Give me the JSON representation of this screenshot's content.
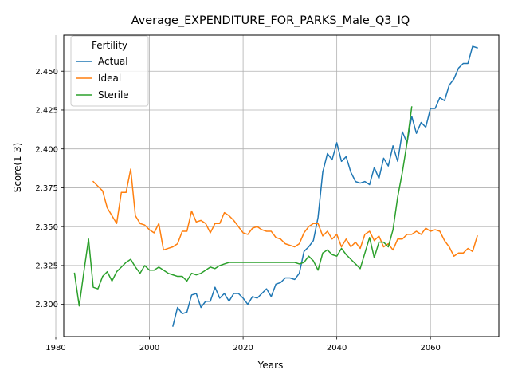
{
  "chart_data": {
    "type": "line",
    "title": "Average_EXPENDITURE_FOR_PARKS_Male_Q3_IQ",
    "xlabel": "Years",
    "ylabel": "Score(1-3)",
    "xlim": [
      1981.7,
      2074.6
    ],
    "ylim": [
      2.2793,
      2.4732
    ],
    "xticks": [
      1980,
      2000,
      2020,
      2040,
      2060
    ],
    "yticks": [
      2.3,
      2.325,
      2.35,
      2.375,
      2.4,
      2.425,
      2.45
    ],
    "ytick_labels": [
      "2.300",
      "2.325",
      "2.350",
      "2.375",
      "2.400",
      "2.425",
      "2.450"
    ],
    "grid": true,
    "legend": {
      "title": "Fertility",
      "placement": "top-left"
    },
    "series": [
      {
        "name": "Actual",
        "color": "#1f77b4",
        "points": [
          [
            2005,
            2.286
          ],
          [
            2006,
            2.298
          ],
          [
            2007,
            2.294
          ],
          [
            2008,
            2.295
          ],
          [
            2009,
            2.306
          ],
          [
            2010,
            2.307
          ],
          [
            2011,
            2.298
          ],
          [
            2012,
            2.302
          ],
          [
            2013,
            2.302
          ],
          [
            2014,
            2.311
          ],
          [
            2015,
            2.304
          ],
          [
            2016,
            2.307
          ],
          [
            2017,
            2.302
          ],
          [
            2018,
            2.307
          ],
          [
            2019,
            2.307
          ],
          [
            2020,
            2.304
          ],
          [
            2021,
            2.3
          ],
          [
            2022,
            2.305
          ],
          [
            2023,
            2.304
          ],
          [
            2024,
            2.307
          ],
          [
            2025,
            2.31
          ],
          [
            2026,
            2.305
          ],
          [
            2027,
            2.313
          ],
          [
            2028,
            2.314
          ],
          [
            2029,
            2.317
          ],
          [
            2030,
            2.317
          ],
          [
            2031,
            2.316
          ],
          [
            2032,
            2.32
          ],
          [
            2033,
            2.334
          ],
          [
            2034,
            2.337
          ],
          [
            2035,
            2.341
          ],
          [
            2036,
            2.356
          ],
          [
            2037,
            2.385
          ],
          [
            2038,
            2.397
          ],
          [
            2039,
            2.393
          ],
          [
            2040,
            2.404
          ],
          [
            2041,
            2.392
          ],
          [
            2042,
            2.395
          ],
          [
            2043,
            2.385
          ],
          [
            2044,
            2.379
          ],
          [
            2045,
            2.378
          ],
          [
            2046,
            2.379
          ],
          [
            2047,
            2.377
          ],
          [
            2048,
            2.388
          ],
          [
            2049,
            2.381
          ],
          [
            2050,
            2.394
          ],
          [
            2051,
            2.389
          ],
          [
            2052,
            2.402
          ],
          [
            2053,
            2.392
          ],
          [
            2054,
            2.411
          ],
          [
            2055,
            2.404
          ],
          [
            2056,
            2.421
          ],
          [
            2057,
            2.41
          ],
          [
            2058,
            2.417
          ],
          [
            2059,
            2.414
          ],
          [
            2060,
            2.426
          ],
          [
            2061,
            2.426
          ],
          [
            2062,
            2.433
          ],
          [
            2063,
            2.431
          ],
          [
            2064,
            2.441
          ],
          [
            2065,
            2.445
          ],
          [
            2066,
            2.452
          ],
          [
            2067,
            2.455
          ],
          [
            2068,
            2.455
          ],
          [
            2069,
            2.466
          ],
          [
            2070,
            2.465
          ]
        ]
      },
      {
        "name": "Ideal",
        "color": "#ff7f0e",
        "points": [
          [
            1988,
            2.379
          ],
          [
            1989,
            2.376
          ],
          [
            1990,
            2.373
          ],
          [
            1991,
            2.362
          ],
          [
            1992,
            2.357
          ],
          [
            1993,
            2.352
          ],
          [
            1994,
            2.372
          ],
          [
            1995,
            2.372
          ],
          [
            1996,
            2.387
          ],
          [
            1997,
            2.357
          ],
          [
            1998,
            2.352
          ],
          [
            1999,
            2.351
          ],
          [
            2000,
            2.348
          ],
          [
            2001,
            2.346
          ],
          [
            2002,
            2.352
          ],
          [
            2003,
            2.335
          ],
          [
            2004,
            2.336
          ],
          [
            2005,
            2.337
          ],
          [
            2006,
            2.339
          ],
          [
            2007,
            2.347
          ],
          [
            2008,
            2.347
          ],
          [
            2009,
            2.36
          ],
          [
            2010,
            2.353
          ],
          [
            2011,
            2.354
          ],
          [
            2012,
            2.352
          ],
          [
            2013,
            2.346
          ],
          [
            2014,
            2.352
          ],
          [
            2015,
            2.352
          ],
          [
            2016,
            2.359
          ],
          [
            2017,
            2.357
          ],
          [
            2018,
            2.354
          ],
          [
            2019,
            2.35
          ],
          [
            2020,
            2.346
          ],
          [
            2021,
            2.345
          ],
          [
            2022,
            2.349
          ],
          [
            2023,
            2.35
          ],
          [
            2024,
            2.348
          ],
          [
            2025,
            2.347
          ],
          [
            2026,
            2.347
          ],
          [
            2027,
            2.343
          ],
          [
            2028,
            2.342
          ],
          [
            2029,
            2.339
          ],
          [
            2030,
            2.338
          ],
          [
            2031,
            2.337
          ],
          [
            2032,
            2.339
          ],
          [
            2033,
            2.346
          ],
          [
            2034,
            2.35
          ],
          [
            2035,
            2.352
          ],
          [
            2036,
            2.352
          ],
          [
            2037,
            2.344
          ],
          [
            2038,
            2.347
          ],
          [
            2039,
            2.342
          ],
          [
            2040,
            2.345
          ],
          [
            2041,
            2.337
          ],
          [
            2042,
            2.342
          ],
          [
            2043,
            2.337
          ],
          [
            2044,
            2.34
          ],
          [
            2045,
            2.336
          ],
          [
            2046,
            2.345
          ],
          [
            2047,
            2.347
          ],
          [
            2048,
            2.341
          ],
          [
            2049,
            2.344
          ],
          [
            2050,
            2.337
          ],
          [
            2051,
            2.339
          ],
          [
            2052,
            2.335
          ],
          [
            2053,
            2.342
          ],
          [
            2054,
            2.342
          ],
          [
            2055,
            2.345
          ],
          [
            2056,
            2.345
          ],
          [
            2057,
            2.347
          ],
          [
            2058,
            2.345
          ],
          [
            2059,
            2.349
          ],
          [
            2060,
            2.347
          ],
          [
            2061,
            2.348
          ],
          [
            2062,
            2.347
          ],
          [
            2063,
            2.341
          ],
          [
            2064,
            2.337
          ],
          [
            2065,
            2.331
          ],
          [
            2066,
            2.333
          ],
          [
            2067,
            2.333
          ],
          [
            2068,
            2.336
          ],
          [
            2069,
            2.334
          ],
          [
            2070,
            2.344
          ]
        ]
      },
      {
        "name": "Sterile",
        "color": "#2ca02c",
        "points": [
          [
            1984,
            2.32
          ],
          [
            1985,
            2.299
          ],
          [
            1986,
            2.321
          ],
          [
            1987,
            2.342
          ],
          [
            1988,
            2.311
          ],
          [
            1989,
            2.31
          ],
          [
            1990,
            2.318
          ],
          [
            1991,
            2.321
          ],
          [
            1992,
            2.315
          ],
          [
            1993,
            2.321
          ],
          [
            1994,
            2.324
          ],
          [
            1995,
            2.327
          ],
          [
            1996,
            2.329
          ],
          [
            1997,
            2.324
          ],
          [
            1998,
            2.32
          ],
          [
            1999,
            2.325
          ],
          [
            2000,
            2.322
          ],
          [
            2001,
            2.322
          ],
          [
            2002,
            2.324
          ],
          [
            2003,
            2.322
          ],
          [
            2004,
            2.32
          ],
          [
            2005,
            2.319
          ],
          [
            2006,
            2.318
          ],
          [
            2007,
            2.318
          ],
          [
            2008,
            2.315
          ],
          [
            2009,
            2.32
          ],
          [
            2010,
            2.319
          ],
          [
            2011,
            2.32
          ],
          [
            2012,
            2.322
          ],
          [
            2013,
            2.324
          ],
          [
            2014,
            2.323
          ],
          [
            2015,
            2.325
          ],
          [
            2016,
            2.326
          ],
          [
            2017,
            2.327
          ],
          [
            2018,
            2.327
          ],
          [
            2020,
            2.327
          ],
          [
            2025,
            2.327
          ],
          [
            2030,
            2.327
          ],
          [
            2031,
            2.327
          ],
          [
            2032,
            2.326
          ],
          [
            2033,
            2.327
          ],
          [
            2034,
            2.331
          ],
          [
            2035,
            2.328
          ],
          [
            2036,
            2.322
          ],
          [
            2037,
            2.333
          ],
          [
            2038,
            2.335
          ],
          [
            2039,
            2.332
          ],
          [
            2040,
            2.331
          ],
          [
            2041,
            2.336
          ],
          [
            2042,
            2.332
          ],
          [
            2043,
            2.329
          ],
          [
            2044,
            2.326
          ],
          [
            2045,
            2.323
          ],
          [
            2046,
            2.333
          ],
          [
            2047,
            2.343
          ],
          [
            2048,
            2.33
          ],
          [
            2049,
            2.34
          ],
          [
            2050,
            2.34
          ],
          [
            2051,
            2.337
          ],
          [
            2052,
            2.348
          ],
          [
            2053,
            2.369
          ],
          [
            2054,
            2.385
          ],
          [
            2055,
            2.404
          ],
          [
            2056,
            2.427
          ]
        ]
      }
    ]
  }
}
